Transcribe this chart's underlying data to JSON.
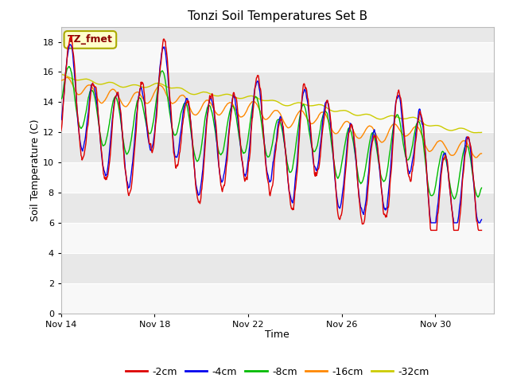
{
  "title": "Tonzi Soil Temperatures Set B",
  "xlabel": "Time",
  "ylabel": "Soil Temperature (C)",
  "ylim": [
    0,
    19
  ],
  "yticks": [
    0,
    2,
    4,
    6,
    8,
    10,
    12,
    14,
    16,
    18
  ],
  "bg_color": "#ffffff",
  "plot_bg_color": "#e8e8e8",
  "band_color1": "#e8e8e8",
  "band_color2": "#f8f8f8",
  "annotation_text": "TZ_fmet",
  "annotation_box_color": "#ffffcc",
  "annotation_text_color": "#8b0000",
  "annotation_border_color": "#aaaa00",
  "series_colors": [
    "#dd0000",
    "#0000ee",
    "#00bb00",
    "#ff8800",
    "#cccc00"
  ],
  "series_labels": [
    "-2cm",
    "-4cm",
    "-8cm",
    "-16cm",
    "-32cm"
  ],
  "line_width": 1.0
}
